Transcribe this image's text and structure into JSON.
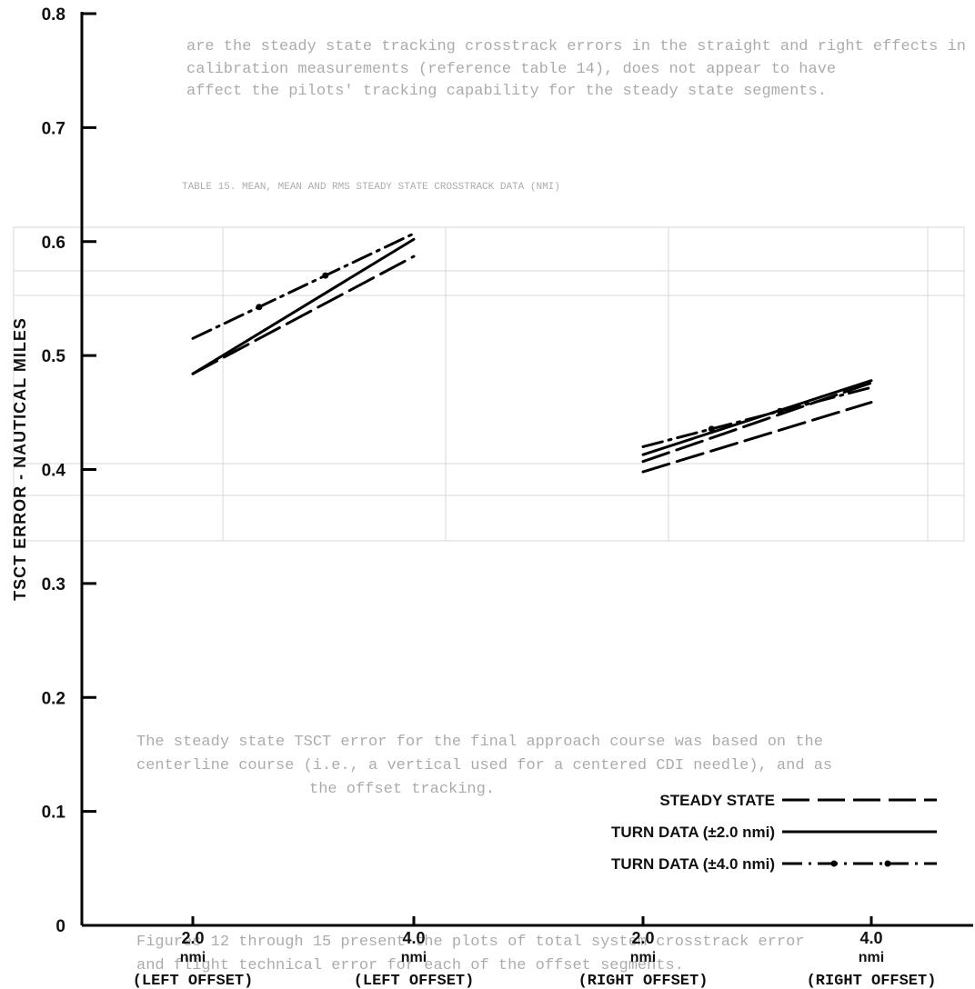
{
  "chart_data": {
    "type": "line",
    "ylabel": "TSCT ERROR - NAUTICAL MILES",
    "ylim": [
      0,
      0.8
    ],
    "yticks": [
      "0",
      "0.1",
      "0.2",
      "0.3",
      "0.4",
      "0.5",
      "0.6",
      "0.7",
      "0.8"
    ],
    "categories": [
      {
        "value": "2.0",
        "unit": "nmi",
        "side": "(LEFT OFFSET)"
      },
      {
        "value": "4.0",
        "unit": "nmi",
        "side": "(LEFT OFFSET)"
      },
      {
        "value": "2.0",
        "unit": "nmi",
        "side": "(RIGHT OFFSET)"
      },
      {
        "value": "4.0",
        "unit": "nmi",
        "side": "(RIGHT OFFSET)"
      }
    ],
    "legend": [
      {
        "label": "STEADY STATE",
        "style": "long-dash"
      },
      {
        "label": "TURN DATA (±2.0 nmi)",
        "style": "solid"
      },
      {
        "label": "TURN DATA (±4.0 nmi)",
        "style": "dash-dot"
      }
    ],
    "segments": [
      {
        "group": "left",
        "style": "dash-dot",
        "from": [
          0,
          0.515
        ],
        "to": [
          1,
          0.607
        ]
      },
      {
        "group": "left",
        "style": "solid",
        "from": [
          0,
          0.484
        ],
        "to": [
          1,
          0.602
        ]
      },
      {
        "group": "left",
        "style": "long-dash",
        "from": [
          0,
          0.484
        ],
        "to": [
          1,
          0.587
        ]
      },
      {
        "group": "right",
        "style": "dash-dot",
        "from": [
          2,
          0.42
        ],
        "to": [
          3,
          0.472
        ]
      },
      {
        "group": "right",
        "style": "solid",
        "from": [
          2,
          0.413
        ],
        "to": [
          3,
          0.478
        ]
      },
      {
        "group": "right",
        "style": "long-dash",
        "from": [
          2,
          0.407
        ],
        "to": [
          3,
          0.476
        ]
      },
      {
        "group": "right",
        "style": "long-dash",
        "from": [
          2,
          0.398
        ],
        "to": [
          3,
          0.459
        ]
      }
    ],
    "legend_position": "bottom-right",
    "grid": false
  },
  "background_text": [
    "are the steady state tracking crosstrack errors in the straight and right effects in terms of CDI displacement. The bias appeared to",
    "calibration measurements (reference table 14), does not appear to have",
    "affect the pilots' tracking capability for the steady state segments.",
    "TABLE 15. MEAN, MEAN AND RMS STEADY STATE CROSSTRACK DATA (NMI)",
    "The steady state TSCT error for the final approach course was based on the",
    "centerline course (i.e., a vertical used for a centered CDI needle), and as",
    "the offset tracking.",
    "Figures 12 through 15 present the plots of total system crosstrack error",
    "and flight technical error for each of the offset segments."
  ]
}
